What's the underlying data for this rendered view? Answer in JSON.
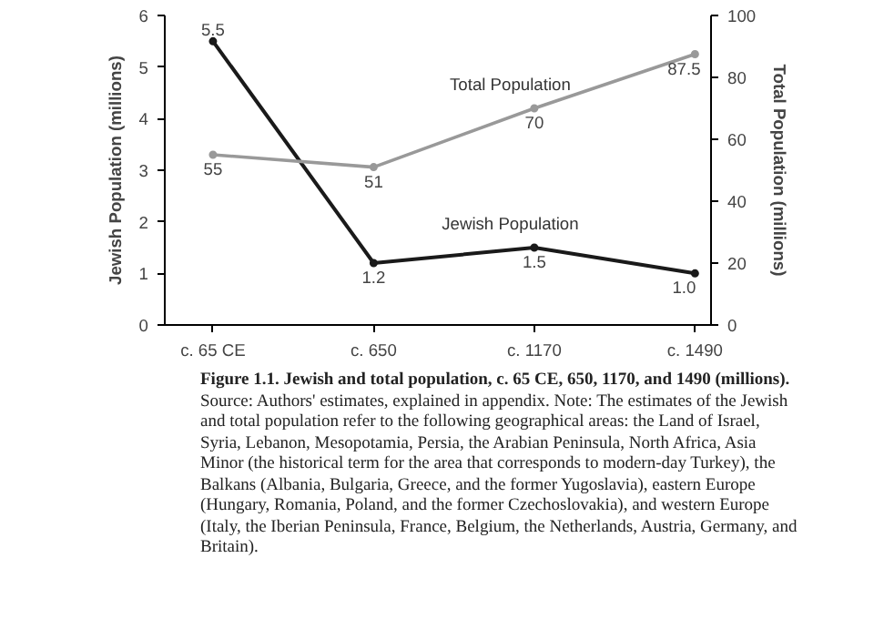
{
  "chart_data": {
    "type": "line",
    "title": "Figure 1.1. Jewish and total population, c. 65 CE, 650, 1170, and 1490 (millions).",
    "annotations": [
      "Source: Authors' estimates, explained in appendix.",
      "Note: The estimates of the Jewish and total population refer to the following geographical areas: the Land of Israel, Syria, Lebanon, Mesopotamia, Persia, the Arabian Peninsula, North Africa, Asia Minor (the historical term for the area that corresponds to modern-day Turkey), the Balkans (Albania, Bulgaria, Greece, and the former Yugoslavia), eastern Europe (Hungary, Romania, Poland, and the former Czechoslovakia), and western Europe (Italy, the Iberian Peninsula, France, Belgium, the Netherlands, Austria, Germany, and Britain)."
    ],
    "categories": [
      "c. 65 CE",
      "c. 650",
      "c. 1170",
      "c. 1490"
    ],
    "ylabel": "Jewish Population (millions)",
    "y2label": "Total Population (millions)",
    "ylim": [
      0,
      6
    ],
    "yticks": [
      0,
      1,
      2,
      3,
      4,
      5,
      6
    ],
    "y2lim": [
      0,
      100
    ],
    "y2ticks": [
      0,
      20,
      40,
      60,
      80,
      100
    ],
    "series": [
      {
        "name": "Jewish Population",
        "color": "#1a1a1a",
        "values": [
          5.5,
          1.2,
          1.5,
          1.0
        ],
        "value_labels": [
          "5.5",
          "1.2",
          "1.5",
          "1.0"
        ]
      },
      {
        "name": "Total Population",
        "color": "#999999",
        "values": [
          55,
          51,
          70,
          87.5
        ],
        "value_labels": [
          "55",
          "51",
          "70",
          "87.5"
        ],
        "axis": "y2"
      }
    ],
    "marker": "circle",
    "line_style": "solid",
    "grid": false
  }
}
